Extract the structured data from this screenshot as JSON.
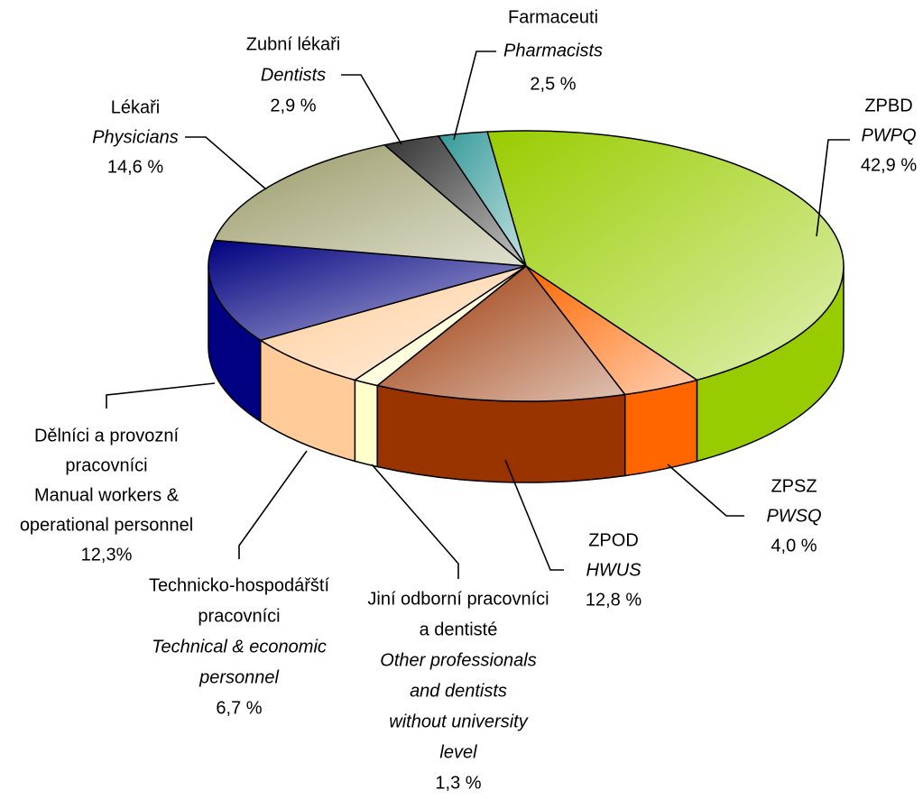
{
  "chart_data": {
    "type": "pie",
    "three_d": true,
    "categories": [
      "ZPBD",
      "ZPSZ",
      "ZPOD",
      [
        "Jiní odborní pracovníci",
        "a dentisté"
      ],
      [
        "Technicko-hospodářští",
        "pracovníci"
      ],
      [
        "Dělníci a provozní",
        "pracovníci"
      ],
      "Lékaři",
      "Zubní lékaři",
      "Farmaceuti"
    ],
    "categories_en": [
      "PWPQ",
      "PWSQ",
      "HWUS",
      [
        "Other professionals",
        "and dentists",
        "without university",
        "level"
      ],
      [
        "Technical & economic",
        "personnel"
      ],
      [
        "Manual workers &",
        "operational personnel"
      ],
      "Physicians",
      "Dentists",
      "Pharmacists"
    ],
    "en_italic": [
      true,
      true,
      true,
      true,
      true,
      false,
      true,
      true,
      true
    ],
    "values": [
      42.9,
      4.0,
      12.8,
      1.3,
      6.7,
      12.3,
      14.6,
      2.9,
      2.5
    ],
    "value_labels": [
      "42,9 %",
      "4,0 %",
      "12,8 %",
      "1,3 %",
      "6,7 %",
      "12,3%",
      "14,6 %",
      "2,9 %",
      "2,5 %"
    ],
    "colors": [
      "#99cc00",
      "#ff6600",
      "#993300",
      "#ffffcc",
      "#ffcc99",
      "#000080",
      "#999966",
      "#333333",
      "#339999"
    ]
  }
}
